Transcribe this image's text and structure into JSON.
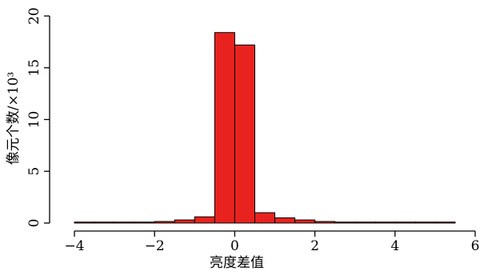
{
  "chart_data": {
    "type": "bar",
    "subtype": "histogram",
    "xlabel": "亮度差值",
    "ylabel": "像元个数/×10³",
    "xlim": [
      -4.4,
      6
    ],
    "ylim": [
      0,
      20
    ],
    "x_ticks": [
      -4,
      -2,
      0,
      2,
      4,
      6
    ],
    "x_tick_labels": [
      "−4",
      "−2",
      "0",
      "2",
      "4",
      "6"
    ],
    "y_ticks": [
      0,
      5,
      10,
      15,
      20
    ],
    "y_tick_labels": [
      "0",
      "5",
      "10",
      "15",
      "20"
    ],
    "bar_color": "#e8231f",
    "bins": [
      {
        "x0": -4.0,
        "x1": -3.5,
        "value": 0.05
      },
      {
        "x0": -3.5,
        "x1": -3.0,
        "value": 0.05
      },
      {
        "x0": -3.0,
        "x1": -2.5,
        "value": 0.05
      },
      {
        "x0": -2.5,
        "x1": -2.0,
        "value": 0.07
      },
      {
        "x0": -2.0,
        "x1": -1.5,
        "value": 0.15
      },
      {
        "x0": -1.5,
        "x1": -1.0,
        "value": 0.3
      },
      {
        "x0": -1.0,
        "x1": -0.5,
        "value": 0.6
      },
      {
        "x0": -0.5,
        "x1": 0.0,
        "value": 18.4
      },
      {
        "x0": 0.0,
        "x1": 0.5,
        "value": 17.2
      },
      {
        "x0": 0.5,
        "x1": 1.0,
        "value": 1.0
      },
      {
        "x0": 1.0,
        "x1": 1.5,
        "value": 0.5
      },
      {
        "x0": 1.5,
        "x1": 2.0,
        "value": 0.3
      },
      {
        "x0": 2.0,
        "x1": 2.5,
        "value": 0.15
      },
      {
        "x0": 2.5,
        "x1": 3.0,
        "value": 0.08
      },
      {
        "x0": 3.0,
        "x1": 3.5,
        "value": 0.06
      },
      {
        "x0": 3.5,
        "x1": 4.0,
        "value": 0.05
      },
      {
        "x0": 4.0,
        "x1": 4.5,
        "value": 0.05
      },
      {
        "x0": 4.5,
        "x1": 5.0,
        "value": 0.05
      },
      {
        "x0": 5.0,
        "x1": 5.5,
        "value": 0.05
      }
    ]
  }
}
